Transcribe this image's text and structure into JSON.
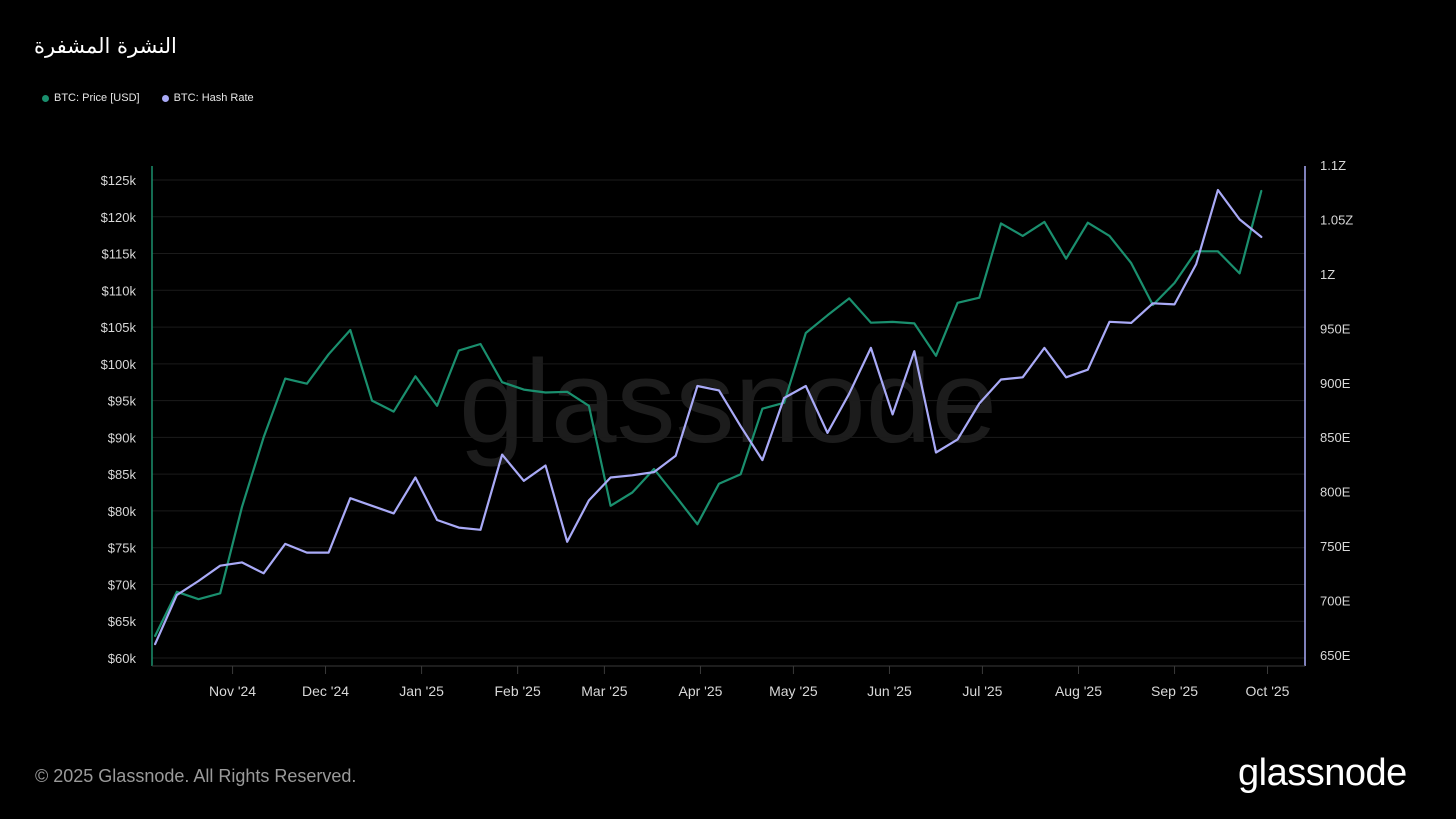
{
  "title": "النشرة المشفرة",
  "legend": [
    {
      "label": "BTC: Price [USD]",
      "color": "#1a8f6e"
    },
    {
      "label": "BTC: Hash Rate",
      "color": "#a9aaf7"
    }
  ],
  "footer": {
    "copyright": "© 2025 Glassnode. All Rights Reserved.",
    "logo": "glassnode"
  },
  "watermark": "glassnode",
  "chart_data": {
    "type": "line",
    "title": "النشرة المشفرة",
    "x_labels": [
      "Nov '24",
      "Dec '24",
      "Jan '25",
      "Feb '25",
      "Mar '25",
      "Apr '25",
      "May '25",
      "Jun '25",
      "Jul '25",
      "Aug '25",
      "Sep '25",
      "Oct '25"
    ],
    "x_label_dates": [
      "2024-11-01",
      "2024-12-01",
      "2025-01-01",
      "2025-02-01",
      "2025-03-01",
      "2025-04-01",
      "2025-05-01",
      "2025-06-01",
      "2025-07-01",
      "2025-08-01",
      "2025-09-01",
      "2025-10-01"
    ],
    "x_range": [
      "2024-10-06",
      "2025-10-06"
    ],
    "dates": [
      "2024-10-07",
      "2024-10-14",
      "2024-10-21",
      "2024-10-28",
      "2024-11-04",
      "2024-11-11",
      "2024-11-18",
      "2024-11-25",
      "2024-12-02",
      "2024-12-09",
      "2024-12-16",
      "2024-12-23",
      "2024-12-30",
      "2025-01-06",
      "2025-01-13",
      "2025-01-20",
      "2025-01-27",
      "2025-02-03",
      "2025-02-10",
      "2025-02-17",
      "2025-02-24",
      "2025-03-03",
      "2025-03-10",
      "2025-03-17",
      "2025-03-24",
      "2025-03-31",
      "2025-04-07",
      "2025-04-14",
      "2025-04-21",
      "2025-04-28",
      "2025-05-05",
      "2025-05-12",
      "2025-05-19",
      "2025-05-26",
      "2025-06-02",
      "2025-06-09",
      "2025-06-16",
      "2025-06-23",
      "2025-06-30",
      "2025-07-07",
      "2025-07-14",
      "2025-07-21",
      "2025-07-28",
      "2025-08-04",
      "2025-08-11",
      "2025-08-18",
      "2025-08-25",
      "2025-09-01",
      "2025-09-08",
      "2025-09-15",
      "2025-09-22",
      "2025-09-29",
      "2025-10-06"
    ],
    "y_left": {
      "ticks": [
        "$60k",
        "$65k",
        "$70k",
        "$75k",
        "$80k",
        "$85k",
        "$90k",
        "$95k",
        "$100k",
        "$105k",
        "$110k",
        "$115k",
        "$120k",
        "$125k"
      ],
      "min": 60000,
      "max": 125000,
      "tick_step": 5000
    },
    "y_right": {
      "ticks": [
        "650E",
        "700E",
        "750E",
        "800E",
        "850E",
        "900E",
        "950E",
        "1Z",
        "1.05Z",
        "1.1Z"
      ],
      "min": 650,
      "max": 1100,
      "tick_step": 50,
      "unit": "EH/s"
    },
    "grid": true,
    "legend_position": "top-left",
    "series": [
      {
        "name": "BTC: Price [USD]",
        "axis": "left",
        "color": "#1a8f6e",
        "values": [
          63000,
          69000,
          68000,
          68800,
          80500,
          90000,
          98000,
          97300,
          101300,
          104600,
          95000,
          93500,
          98300,
          94300,
          101800,
          102700,
          97500,
          96500,
          96100,
          96200,
          94300,
          80700,
          82500,
          85700,
          82000,
          78200,
          83700,
          85000,
          93900,
          94700,
          104200,
          106600,
          108900,
          105600,
          105700,
          105500,
          101100,
          108300,
          109000,
          119100,
          117400,
          119300,
          114300,
          119200,
          117400,
          113700,
          108000,
          111000,
          115300,
          115300,
          112300,
          123500,
          null
        ]
      },
      {
        "name": "BTC: Hash Rate",
        "axis": "right",
        "color": "#a9aaf7",
        "values": [
          660,
          705,
          718,
          732,
          735,
          725,
          752,
          744,
          744,
          794,
          787,
          780,
          813,
          774,
          767,
          765,
          834,
          810,
          824,
          754,
          792,
          813,
          815,
          818,
          833,
          897,
          893,
          860,
          829,
          886,
          897,
          854,
          890,
          932,
          871,
          929,
          836,
          848,
          881,
          903,
          905,
          932,
          905,
          912,
          956,
          955,
          973,
          972,
          1009,
          1077,
          1050,
          1034,
          null
        ]
      }
    ]
  }
}
